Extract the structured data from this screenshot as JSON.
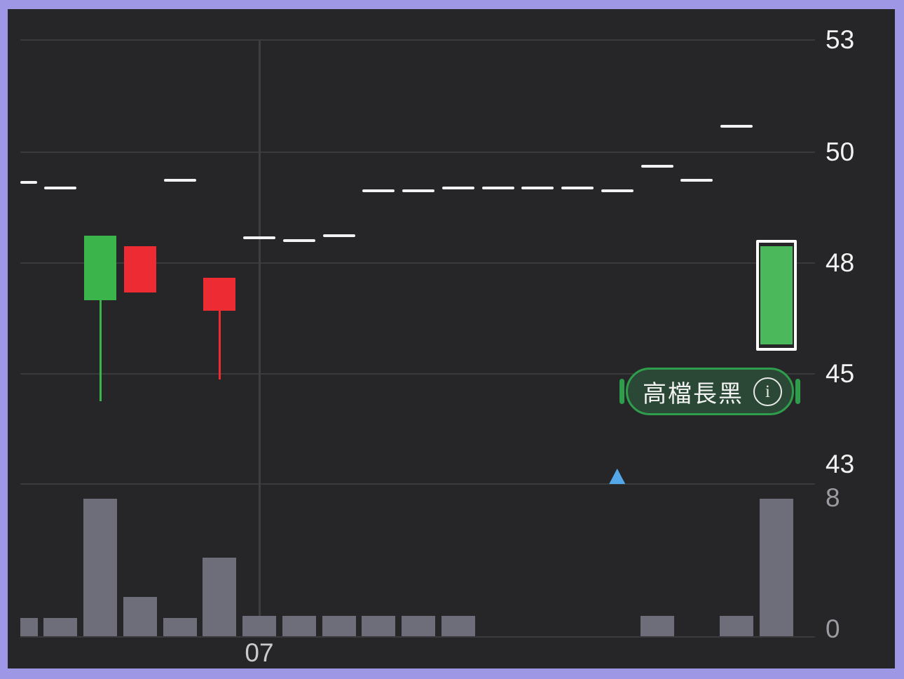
{
  "chart_data": {
    "type": "candlestick",
    "market_convention": "taiwan (red = up day, green = down day)",
    "price_axis": {
      "side": "right",
      "ticks": [
        "53",
        "50",
        "48",
        "45",
        "43"
      ]
    },
    "volume_axis": {
      "side": "right",
      "ticks": [
        "8",
        "0"
      ],
      "max": 8
    },
    "x_axis": {
      "tick_label": "07",
      "tick_column": 7
    },
    "badge": {
      "label": "高檔長黑",
      "icon": "info-icon"
    },
    "marker": {
      "shape": "triangle-up",
      "column": 16,
      "color": "#54A8EA"
    },
    "columns": [
      {
        "col": 1,
        "type": "flat",
        "price": 49.45,
        "volume": 1.1,
        "clipped_left": true
      },
      {
        "col": 2,
        "type": "flat",
        "price": 49.35,
        "volume": 1.1
      },
      {
        "col": 3,
        "type": "candle",
        "direction": "down",
        "open": 48.5,
        "high": 48.5,
        "low": 44.5,
        "close": 47.0,
        "volume": 8
      },
      {
        "col": 4,
        "type": "candle",
        "direction": "up",
        "open": 47.2,
        "high": 48.3,
        "low": 47.2,
        "close": 48.3,
        "volume": 2.3
      },
      {
        "col": 5,
        "type": "flat",
        "price": 49.5,
        "volume": 1.1
      },
      {
        "col": 6,
        "type": "candle",
        "direction": "up",
        "open": 46.7,
        "high": 47.6,
        "low": 44.9,
        "close": 47.6,
        "volume": 4.6
      },
      {
        "col": 7,
        "type": "flat",
        "price": 48.45,
        "volume": 1.2
      },
      {
        "col": 8,
        "type": "flat",
        "price": 48.4,
        "volume": 1.2
      },
      {
        "col": 9,
        "type": "flat",
        "price": 48.5,
        "volume": 1.2
      },
      {
        "col": 10,
        "type": "flat",
        "price": 49.3,
        "volume": 1.2
      },
      {
        "col": 11,
        "type": "flat",
        "price": 49.3,
        "volume": 1.2
      },
      {
        "col": 12,
        "type": "flat",
        "price": 49.35,
        "volume": 1.2
      },
      {
        "col": 13,
        "type": "flat",
        "price": 49.35,
        "volume": 0
      },
      {
        "col": 14,
        "type": "flat",
        "price": 49.35,
        "volume": 0
      },
      {
        "col": 15,
        "type": "flat",
        "price": 49.35,
        "volume": 0
      },
      {
        "col": 16,
        "type": "flat",
        "price": 49.3,
        "volume": 0,
        "marker": "triangle-up"
      },
      {
        "col": 17,
        "type": "flat",
        "price": 49.75,
        "volume": 1.2
      },
      {
        "col": 18,
        "type": "flat",
        "price": 49.5,
        "volume": 0
      },
      {
        "col": 19,
        "type": "flat",
        "price": 50.7,
        "volume": 1.2
      },
      {
        "col": 20,
        "type": "candle",
        "direction": "down",
        "open": 48.3,
        "high": 48.3,
        "low": 45.8,
        "close": 45.8,
        "volume": 8,
        "highlighted": true
      }
    ],
    "colors": {
      "frame": "#9D97E6",
      "background": "#262628",
      "up": "#EC2B33",
      "down": "#3AB44B",
      "down_highlight": "#4CB85C",
      "flat_dash": "#F2F2F2",
      "volume_bar": "#6E6D7A",
      "grid": "#3A3A3D",
      "vgrid": "#3E3E41",
      "axis_label": "#F2F2F2",
      "volume_label": "#9C9BA1",
      "x_label": "#C9CACC",
      "badge_fill": "#2B4836",
      "badge_border": "#2F9E4C",
      "highlight_frame": "#FFFFFF",
      "marker_blue": "#54A8EA"
    }
  }
}
